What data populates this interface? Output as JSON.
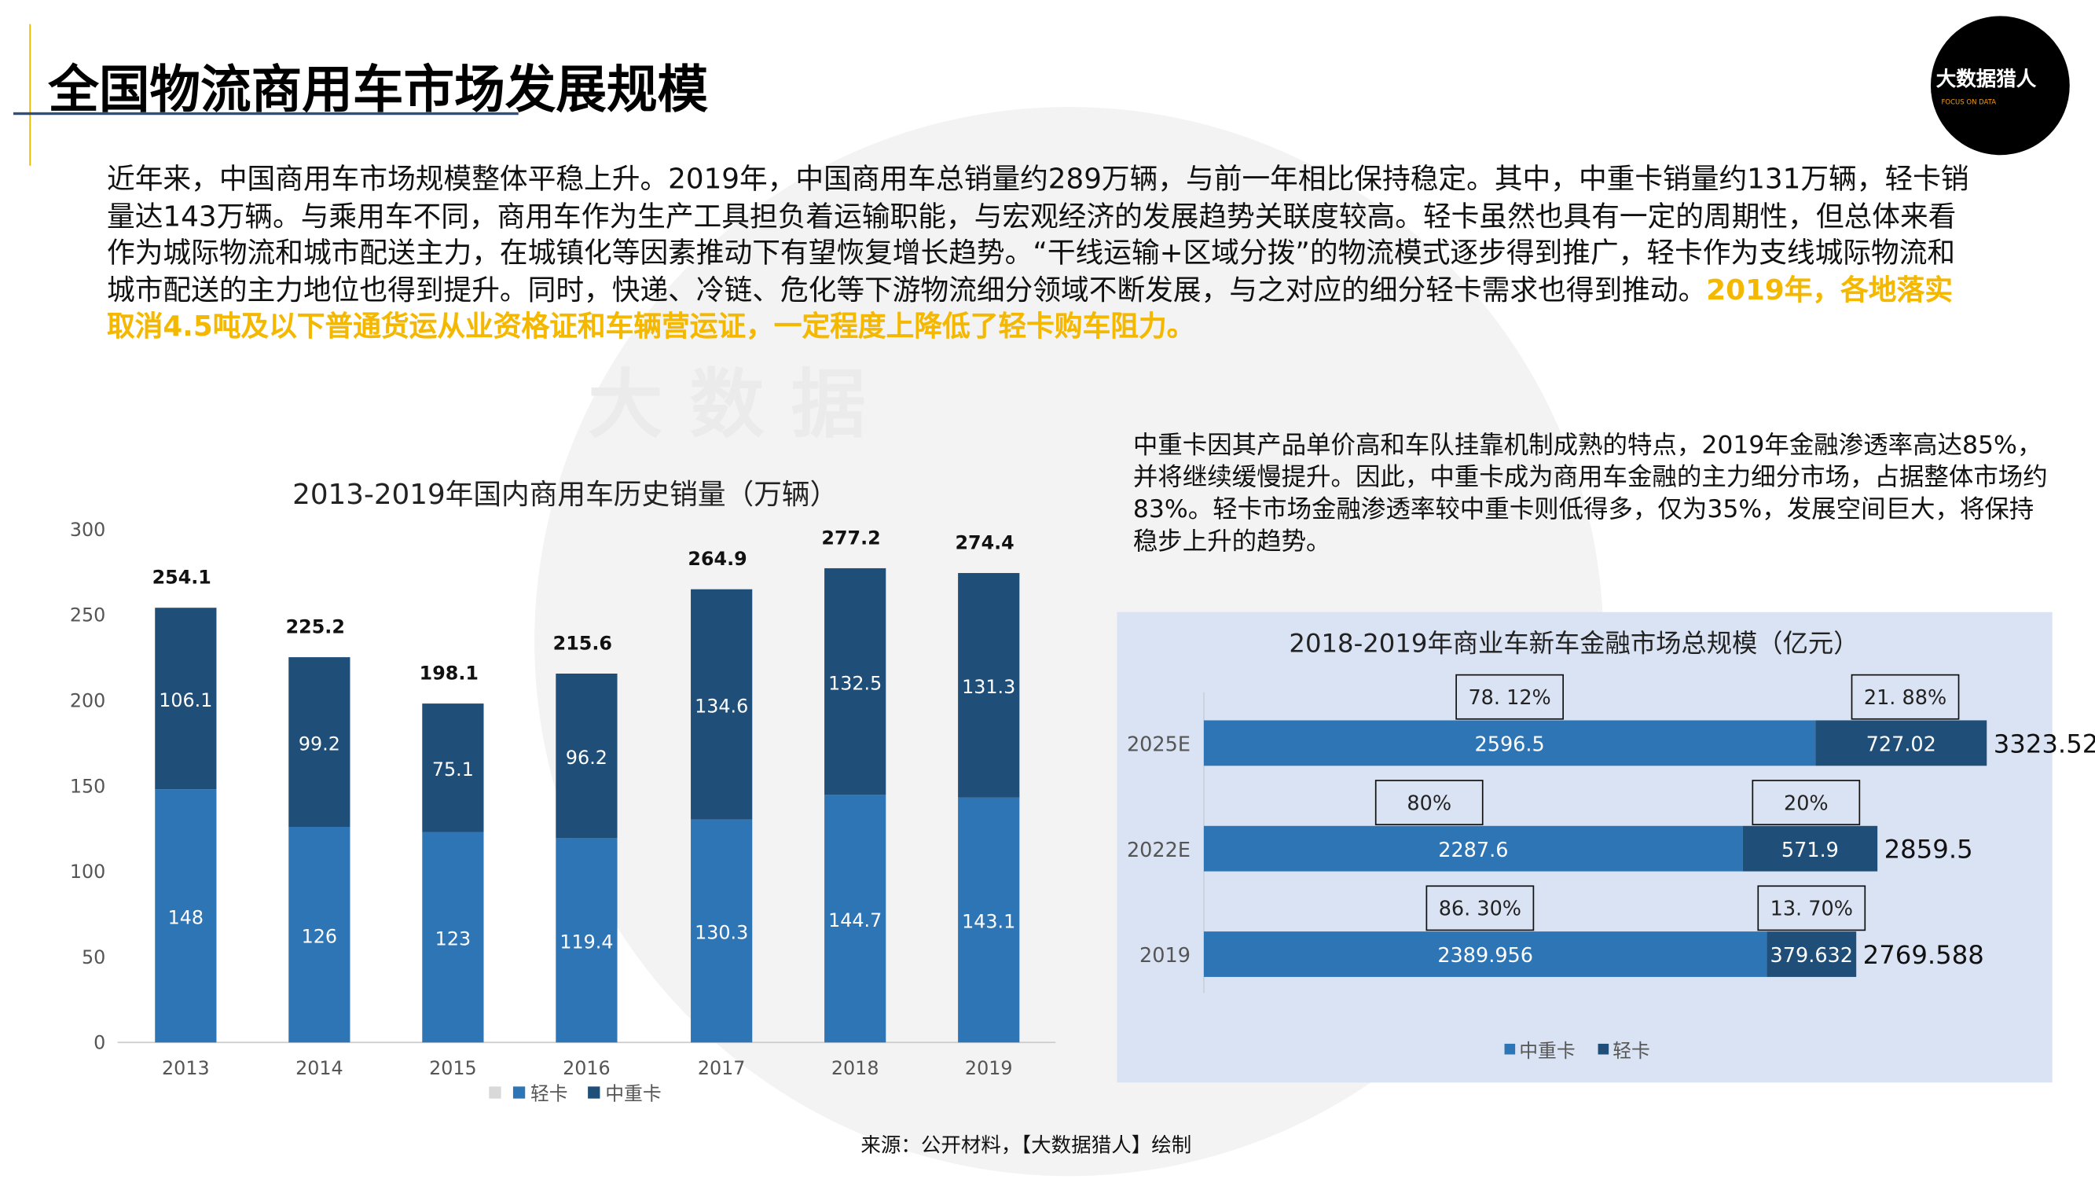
{
  "header": {
    "title": "全国物流商用车市场发展规模",
    "logo_text": "大数据猎人",
    "logo_sub": "FOCUS ON DATA"
  },
  "watermark": "大数据",
  "intro": {
    "text": "近年来，中国商用车市场规模整体平稳上升。2019年，中国商用车总销量约289万辆，与前一年相比保持稳定。其中，中重卡销量约131万辆，轻卡销量达143万辆。与乘用车不同，商用车作为生产工具担负着运输职能，与宏观经济的发展趋势关联度较高。轻卡虽然也具有一定的周期性，但总体来看作为城际物流和城市配送主力，在城镇化等因素推动下有望恢复增长趋势。“干线运输+区域分拨”的物流模式逐步得到推广，轻卡作为支线城际物流和城市配送的主力地位也得到提升。同时，快递、冷链、危化等下游物流细分领域不断发展，与之对应的细分轻卡需求也得到推动。",
    "highlight": "2019年，各地落实取消4.5吨及以下普通货运从业资格证和车辆营运证，一定程度上降低了轻卡购车阻力。"
  },
  "finance_text": "中重卡因其产品单价高和车队挂靠机制成熟的特点，2019年金融渗透率高达85%，并将继续缓慢提升。因此，中重卡成为商用车金融的主力细分市场，占据整体市场约83%。轻卡市场金融渗透率较中重卡则低得多，仅为35%，发展空间巨大，将保持稳步上升的趋势。",
  "source": "来源：公开材料，【大数据猎人】绘制",
  "colors": {
    "light": "#2e75b6",
    "dark": "#1f4e79",
    "panel": "#dae3f3",
    "highlight": "#f5b800"
  },
  "chart_data": [
    {
      "type": "bar",
      "stacked": true,
      "title": "2013-2019年国内商用车历史销量（万辆）",
      "categories": [
        "2013",
        "2014",
        "2015",
        "2016",
        "2017",
        "2018",
        "2019"
      ],
      "series": [
        {
          "name": "轻卡",
          "values": [
            148,
            126,
            123,
            119.4,
            130.3,
            144.7,
            143.1
          ]
        },
        {
          "name": "中重卡",
          "values": [
            106.1,
            99.2,
            75.1,
            96.2,
            134.6,
            132.5,
            131.3
          ]
        }
      ],
      "totals": [
        "254.1",
        "225.2",
        "198.1",
        "215.6",
        "264.9",
        "277.2",
        "274.4"
      ],
      "labels": {
        "轻卡": [
          "148",
          "126",
          "123",
          "119.4",
          "130.3",
          "144.7",
          "143.1"
        ],
        "中重卡": [
          "106.1",
          "99.2",
          "75.1",
          "96.2",
          "134.6",
          "132.5",
          "131.3"
        ]
      },
      "yticks": [
        "0",
        "50",
        "100",
        "150",
        "200",
        "250",
        "300"
      ],
      "ylim": [
        0,
        300
      ],
      "legend": [
        "",
        "轻卡",
        "中重卡"
      ],
      "legend_position": "bottom"
    },
    {
      "type": "bar",
      "orientation": "horizontal",
      "stacked": true,
      "title": "2018-2019年商业车新车金融市场总规模（亿元）",
      "categories": [
        "2025E",
        "2022E",
        "2019"
      ],
      "series": [
        {
          "name": "中重卡",
          "values": [
            2596.5,
            2287.6,
            2389.956
          ],
          "labels": [
            "2596.5",
            "2287.6",
            "2389.956"
          ],
          "shares": [
            "78. 12%",
            "80%",
            "86. 30%"
          ]
        },
        {
          "name": "轻卡",
          "values": [
            727.02,
            571.9,
            379.632
          ],
          "labels": [
            "727.02",
            "571.9",
            "379.632"
          ],
          "shares": [
            "21. 88%",
            "20%",
            "13. 70%"
          ]
        }
      ],
      "totals": [
        "3323.52",
        "2859.5",
        "2769.588"
      ],
      "legend": [
        "中重卡",
        "轻卡"
      ],
      "legend_position": "bottom"
    }
  ]
}
